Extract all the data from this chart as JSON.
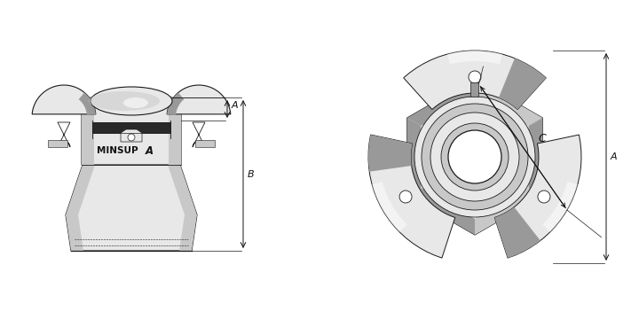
{
  "bg_color": "#ffffff",
  "fig_width": 7.2,
  "fig_height": 3.6,
  "dpi": 100,
  "label_A": "A",
  "label_B": "B",
  "label_C": "C",
  "brand": "MINSUP",
  "line_color": "#1a1a1a",
  "dark_gray": "#555555",
  "mid_gray": "#999999",
  "light_gray": "#c8c8c8",
  "very_light_gray": "#e8e8e8",
  "white": "#ffffff",
  "black": "#111111",
  "rubber_color": "#2a2a2a",
  "claw_dark": "#888888",
  "hex_mid": "#bbbbbb"
}
